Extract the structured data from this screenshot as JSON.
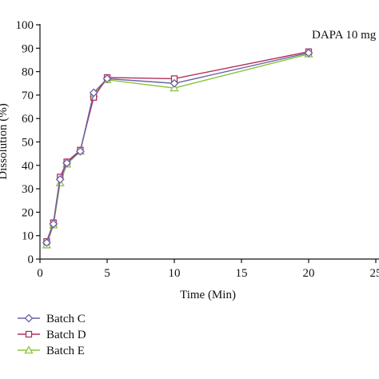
{
  "chart_data": {
    "type": "line",
    "title": "",
    "annotation": "DAPA 10 mg",
    "xlabel": "Time (Min)",
    "ylabel": "Dissolution (%)",
    "xlim": [
      0,
      25
    ],
    "ylim": [
      0,
      100
    ],
    "xticks": [
      0,
      5,
      10,
      15,
      20,
      25
    ],
    "yticks": [
      0,
      10,
      20,
      30,
      40,
      50,
      60,
      70,
      80,
      90,
      100
    ],
    "xtick_labels": [
      "0",
      "5",
      "10",
      "15",
      "20",
      "25"
    ],
    "ytick_labels": [
      "0",
      "10",
      "20",
      "30",
      "40",
      "50",
      "60",
      "70",
      "80",
      "90",
      "100"
    ],
    "grid": false,
    "legend_position": "bottom-left",
    "series": [
      {
        "name": "Batch C",
        "color": "#6a63a8",
        "marker": "diamond",
        "x": [
          0.5,
          1,
          1.5,
          2,
          3,
          4,
          5,
          10,
          20
        ],
        "y": [
          7,
          15,
          34,
          41,
          46,
          71,
          77,
          75,
          88
        ]
      },
      {
        "name": "Batch D",
        "color": "#b0305a",
        "marker": "square",
        "x": [
          0.5,
          1,
          1.5,
          2,
          3,
          4,
          5,
          10,
          20
        ],
        "y": [
          7.5,
          15.5,
          35,
          41.5,
          46.5,
          69,
          77.5,
          77,
          88.5
        ]
      },
      {
        "name": "Batch E",
        "color": "#8cc63f",
        "marker": "triangle",
        "x": [
          0.5,
          1,
          1.5,
          2,
          3,
          4,
          5,
          10,
          20
        ],
        "y": [
          6,
          14.5,
          32.5,
          40.5,
          46,
          70.5,
          76.5,
          73,
          87.5
        ]
      }
    ]
  }
}
